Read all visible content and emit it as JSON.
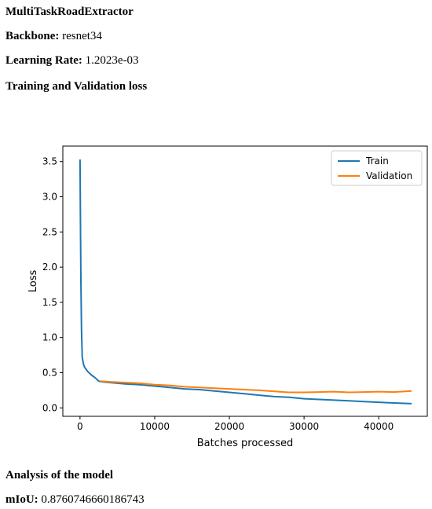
{
  "report": {
    "model_name": "MultiTaskRoadExtractor",
    "backbone_label": "Backbone:",
    "backbone_value": "resnet34",
    "lr_label": "Learning Rate:",
    "lr_value": "1.2023e-03",
    "loss_heading": "Training and Validation loss",
    "analysis_heading": "Analysis of the model",
    "miou_label": "mIoU:",
    "miou_value": "0.8760746660186743"
  },
  "chart_data": {
    "type": "line",
    "xlabel": "Batches processed",
    "ylabel": "Loss",
    "xlim": [
      -2300,
      46500
    ],
    "ylim": [
      -0.12,
      3.72
    ],
    "xticks": [
      0,
      10000,
      20000,
      30000,
      40000
    ],
    "yticks": [
      0.0,
      0.5,
      1.0,
      1.5,
      2.0,
      2.5,
      3.0,
      3.5
    ],
    "legend": "top-right",
    "grid": false,
    "series": [
      {
        "name": "Train",
        "color": "#1f77b4",
        "x": [
          0,
          60,
          120,
          200,
          300,
          450,
          600,
          800,
          1000,
          1300,
          1600,
          2000,
          2500,
          3000,
          4000,
          5000,
          6000,
          8000,
          10000,
          12000,
          14000,
          16000,
          18000,
          20000,
          22000,
          24000,
          26000,
          28000,
          30000,
          32000,
          34000,
          36000,
          38000,
          40000,
          42000,
          44400
        ],
        "y": [
          3.53,
          2.7,
          1.8,
          1.1,
          0.72,
          0.63,
          0.58,
          0.55,
          0.52,
          0.49,
          0.46,
          0.43,
          0.38,
          0.37,
          0.36,
          0.35,
          0.34,
          0.33,
          0.31,
          0.29,
          0.27,
          0.26,
          0.24,
          0.22,
          0.2,
          0.18,
          0.16,
          0.15,
          0.13,
          0.12,
          0.11,
          0.1,
          0.09,
          0.08,
          0.07,
          0.06
        ]
      },
      {
        "name": "Validation",
        "color": "#ff7f0e",
        "x": [
          2700,
          4000,
          6000,
          8000,
          10000,
          12000,
          14000,
          16000,
          18000,
          20000,
          22000,
          24000,
          26000,
          28000,
          30000,
          32000,
          34000,
          36000,
          38000,
          40000,
          42000,
          44400
        ],
        "y": [
          0.38,
          0.37,
          0.36,
          0.35,
          0.33,
          0.32,
          0.3,
          0.29,
          0.28,
          0.27,
          0.26,
          0.25,
          0.235,
          0.22,
          0.22,
          0.225,
          0.23,
          0.22,
          0.225,
          0.23,
          0.225,
          0.24
        ]
      }
    ]
  }
}
